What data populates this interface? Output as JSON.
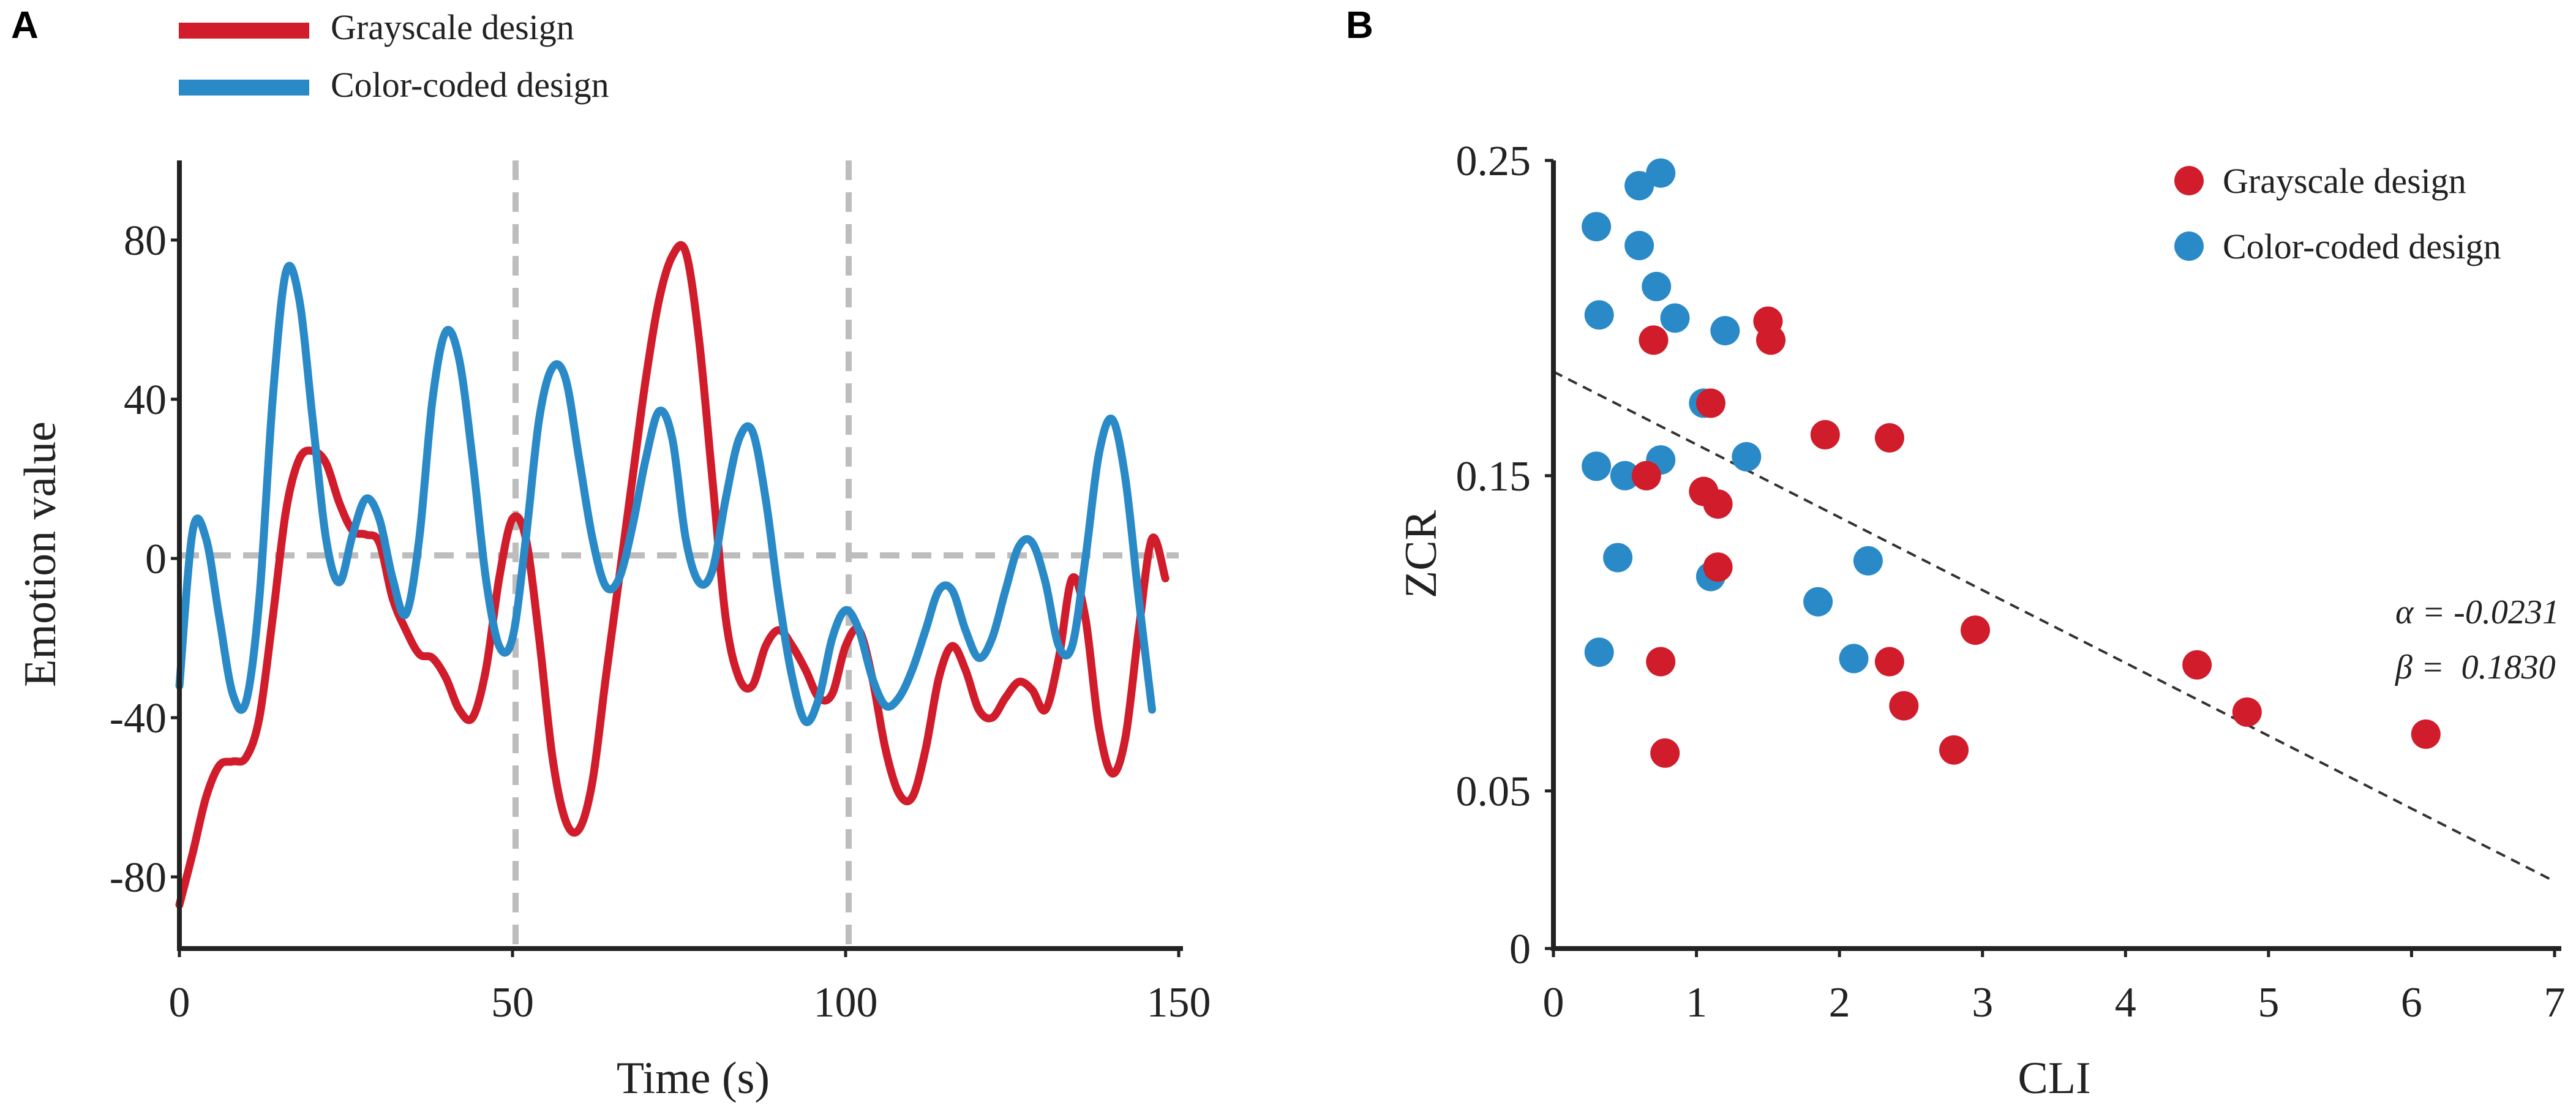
{
  "colors": {
    "grayscale": "#d01c2b",
    "color_coded": "#2a8ac7",
    "grid": "#bdbdbd",
    "axis": "#222222",
    "fit": "#333333"
  },
  "chart_data": [
    {
      "panel": "A",
      "type": "line",
      "xlabel": "Time (s)",
      "ylabel": "Emotion value",
      "xlim": [
        0,
        150
      ],
      "ylim": [
        -98,
        100
      ],
      "xticks": [
        0,
        50,
        100,
        150
      ],
      "xtick_labels": [
        "0",
        "50",
        "100",
        "150"
      ],
      "yticks": [
        80,
        40,
        0,
        -40,
        -80
      ],
      "ytick_labels": [
        "80",
        "40",
        "0",
        "-40",
        "-80"
      ],
      "vlines": [
        50,
        100
      ],
      "hline": 0,
      "legend": [
        {
          "name": "Grayscale design",
          "color": "#d01c2b"
        },
        {
          "name": "Color-coded design",
          "color": "#2a8ac7"
        }
      ],
      "series": [
        {
          "name": "Grayscale design",
          "color": "#d01c2b",
          "points": [
            [
              0,
              -87
            ],
            [
              2,
              -74
            ],
            [
              4,
              -60
            ],
            [
              6,
              -52
            ],
            [
              8,
              -51
            ],
            [
              10,
              -50
            ],
            [
              12,
              -40
            ],
            [
              14,
              -15
            ],
            [
              16,
              12
            ],
            [
              18,
              25
            ],
            [
              20,
              27
            ],
            [
              22,
              24
            ],
            [
              24,
              14
            ],
            [
              26,
              7
            ],
            [
              28,
              6
            ],
            [
              30,
              4
            ],
            [
              32,
              -10
            ],
            [
              34,
              -18
            ],
            [
              36,
              -24
            ],
            [
              38,
              -25
            ],
            [
              40,
              -30
            ],
            [
              42,
              -38
            ],
            [
              44,
              -40
            ],
            [
              46,
              -28
            ],
            [
              48,
              -5
            ],
            [
              50,
              10
            ],
            [
              52,
              5
            ],
            [
              54,
              -20
            ],
            [
              56,
              -50
            ],
            [
              58,
              -66
            ],
            [
              60,
              -68
            ],
            [
              62,
              -56
            ],
            [
              64,
              -30
            ],
            [
              66,
              -5
            ],
            [
              68,
              20
            ],
            [
              70,
              45
            ],
            [
              72,
              65
            ],
            [
              74,
              76
            ],
            [
              76,
              77
            ],
            [
              78,
              55
            ],
            [
              80,
              20
            ],
            [
              82,
              -15
            ],
            [
              84,
              -30
            ],
            [
              86,
              -32
            ],
            [
              88,
              -22
            ],
            [
              90,
              -18
            ],
            [
              92,
              -22
            ],
            [
              94,
              -28
            ],
            [
              96,
              -35
            ],
            [
              98,
              -34
            ],
            [
              100,
              -22
            ],
            [
              102,
              -18
            ],
            [
              104,
              -30
            ],
            [
              106,
              -48
            ],
            [
              108,
              -59
            ],
            [
              110,
              -60
            ],
            [
              112,
              -48
            ],
            [
              114,
              -30
            ],
            [
              116,
              -22
            ],
            [
              118,
              -28
            ],
            [
              120,
              -38
            ],
            [
              122,
              -40
            ],
            [
              124,
              -35
            ],
            [
              126,
              -31
            ],
            [
              128,
              -33
            ],
            [
              130,
              -38
            ],
            [
              132,
              -25
            ],
            [
              134,
              -5
            ],
            [
              136,
              -15
            ],
            [
              138,
              -42
            ],
            [
              140,
              -54
            ],
            [
              142,
              -45
            ],
            [
              144,
              -18
            ],
            [
              146,
              5
            ],
            [
              148,
              -5
            ]
          ]
        },
        {
          "name": "Color-coded design",
          "color": "#2a8ac7",
          "points": [
            [
              0,
              -32
            ],
            [
              2,
              7
            ],
            [
              4,
              5
            ],
            [
              6,
              -15
            ],
            [
              8,
              -34
            ],
            [
              10,
              -36
            ],
            [
              12,
              -10
            ],
            [
              14,
              40
            ],
            [
              16,
              72
            ],
            [
              18,
              65
            ],
            [
              20,
              35
            ],
            [
              22,
              5
            ],
            [
              24,
              -6
            ],
            [
              26,
              6
            ],
            [
              28,
              15
            ],
            [
              30,
              10
            ],
            [
              32,
              -5
            ],
            [
              34,
              -14
            ],
            [
              36,
              5
            ],
            [
              38,
              40
            ],
            [
              40,
              57
            ],
            [
              42,
              50
            ],
            [
              44,
              25
            ],
            [
              46,
              -5
            ],
            [
              48,
              -22
            ],
            [
              50,
              -20
            ],
            [
              52,
              5
            ],
            [
              54,
              35
            ],
            [
              56,
              48
            ],
            [
              58,
              45
            ],
            [
              60,
              25
            ],
            [
              62,
              5
            ],
            [
              64,
              -7
            ],
            [
              66,
              -5
            ],
            [
              68,
              8
            ],
            [
              70,
              25
            ],
            [
              72,
              37
            ],
            [
              74,
              30
            ],
            [
              76,
              5
            ],
            [
              78,
              -6
            ],
            [
              80,
              -3
            ],
            [
              82,
              15
            ],
            [
              84,
              30
            ],
            [
              86,
              32
            ],
            [
              88,
              15
            ],
            [
              90,
              -10
            ],
            [
              92,
              -30
            ],
            [
              94,
              -41
            ],
            [
              96,
              -35
            ],
            [
              98,
              -20
            ],
            [
              100,
              -13
            ],
            [
              102,
              -18
            ],
            [
              104,
              -30
            ],
            [
              106,
              -37
            ],
            [
              108,
              -35
            ],
            [
              110,
              -28
            ],
            [
              112,
              -18
            ],
            [
              114,
              -8
            ],
            [
              116,
              -8
            ],
            [
              118,
              -18
            ],
            [
              120,
              -25
            ],
            [
              122,
              -20
            ],
            [
              124,
              -8
            ],
            [
              126,
              3
            ],
            [
              128,
              4
            ],
            [
              130,
              -6
            ],
            [
              132,
              -22
            ],
            [
              134,
              -22
            ],
            [
              136,
              0
            ],
            [
              138,
              26
            ],
            [
              140,
              35
            ],
            [
              142,
              20
            ],
            [
              144,
              -10
            ],
            [
              146,
              -38
            ]
          ]
        }
      ]
    },
    {
      "panel": "B",
      "type": "scatter",
      "xlabel": "CLI",
      "ylabel": "ZCR",
      "xlim": [
        0,
        7
      ],
      "ylim": [
        0,
        0.25
      ],
      "xticks": [
        0,
        1,
        2,
        3,
        4,
        5,
        6,
        7
      ],
      "xtick_labels": [
        "0",
        "1",
        "2",
        "3",
        "4",
        "5",
        "6",
        "7"
      ],
      "yticks": [
        0.25,
        0.15,
        0.05,
        0
      ],
      "ytick_labels": [
        "0.25",
        "0.15",
        "0.05",
        "0"
      ],
      "fit_line": {
        "alpha": -0.0231,
        "beta": 0.183,
        "x_range": [
          0,
          7
        ]
      },
      "fit_alpha_text": "α = -0.0231",
      "fit_beta_text": "β =  0.1830",
      "legend": [
        {
          "name": "Grayscale design",
          "color": "#d01c2b"
        },
        {
          "name": "Color-coded design",
          "color": "#2a8ac7"
        }
      ],
      "series": [
        {
          "name": "Color-coded design",
          "color": "#2a8ac7",
          "points": [
            [
              0.3,
              0.229
            ],
            [
              0.6,
              0.242
            ],
            [
              0.75,
              0.246
            ],
            [
              0.6,
              0.223
            ],
            [
              0.72,
              0.21
            ],
            [
              0.32,
              0.201
            ],
            [
              0.85,
              0.2
            ],
            [
              1.2,
              0.196
            ],
            [
              1.05,
              0.173
            ],
            [
              0.3,
              0.153
            ],
            [
              0.75,
              0.155
            ],
            [
              0.5,
              0.15
            ],
            [
              1.35,
              0.156
            ],
            [
              0.45,
              0.124
            ],
            [
              1.1,
              0.118
            ],
            [
              2.2,
              0.123
            ],
            [
              1.85,
              0.11
            ],
            [
              0.32,
              0.094
            ],
            [
              2.1,
              0.092
            ]
          ]
        },
        {
          "name": "Grayscale design",
          "color": "#d01c2b",
          "points": [
            [
              0.7,
              0.193
            ],
            [
              1.5,
              0.199
            ],
            [
              1.52,
              0.193
            ],
            [
              1.1,
              0.173
            ],
            [
              1.9,
              0.163
            ],
            [
              2.35,
              0.162
            ],
            [
              0.65,
              0.15
            ],
            [
              1.05,
              0.145
            ],
            [
              1.15,
              0.141
            ],
            [
              1.15,
              0.121
            ],
            [
              2.95,
              0.101
            ],
            [
              0.75,
              0.091
            ],
            [
              2.35,
              0.091
            ],
            [
              4.5,
              0.09
            ],
            [
              2.45,
              0.077
            ],
            [
              4.85,
              0.075
            ],
            [
              6.1,
              0.068
            ],
            [
              0.78,
              0.062
            ],
            [
              2.8,
              0.063
            ]
          ]
        }
      ]
    }
  ]
}
